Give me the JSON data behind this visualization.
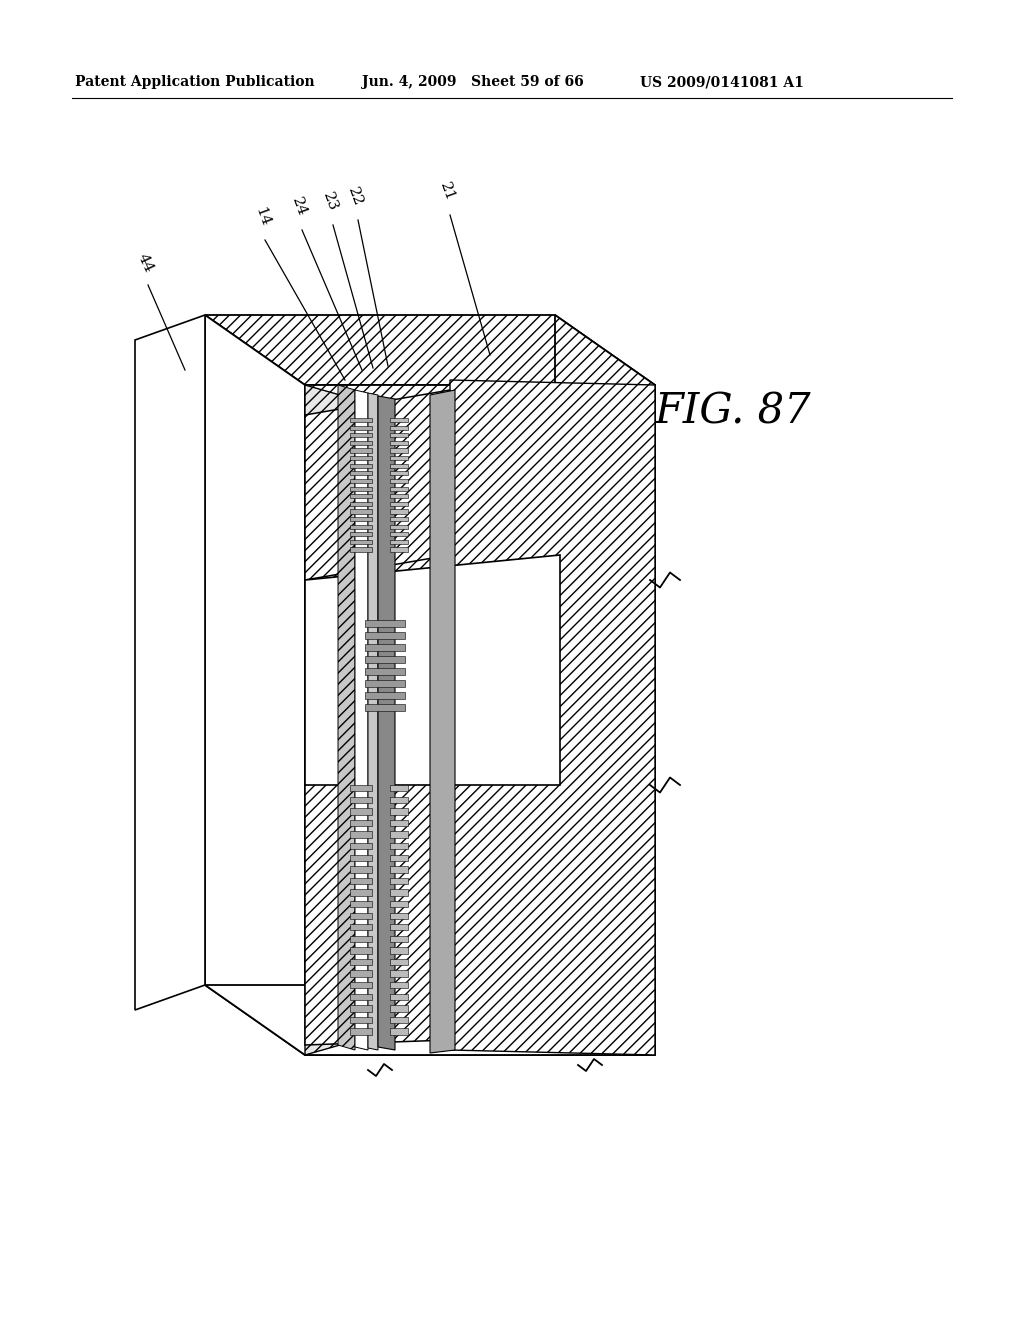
{
  "header_left": "Patent Application Publication",
  "header_mid": "Jun. 4, 2009   Sheet 59 of 66",
  "header_right": "US 2009/0141081 A1",
  "fig_label": "FIG. 87",
  "background_color": "#ffffff",
  "line_color": "#000000",
  "hatch_light": "///",
  "hatch_dense": "////",
  "gray_fill": "#c8c8c8",
  "light_fill": "#e8e8e8",
  "white_fill": "#ffffff"
}
